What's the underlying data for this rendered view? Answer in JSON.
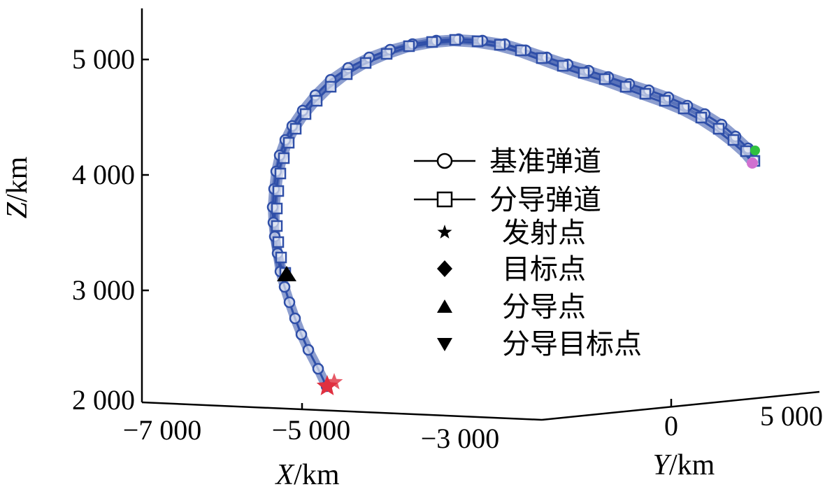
{
  "chart_data": {
    "type": "line",
    "projection": "3d",
    "axes": {
      "x": {
        "label_italic": "X",
        "label_unit": "/km",
        "ticks": [
          "−7 000",
          "−5 000",
          "−3 000"
        ]
      },
      "y": {
        "label_italic": "Y",
        "label_unit": "/km",
        "ticks": [
          "0",
          "5 000"
        ]
      },
      "z": {
        "label_italic": "Z",
        "label_unit": "/km",
        "ticks": [
          "2 000",
          "3 000",
          "4 000",
          "5 000"
        ]
      }
    },
    "legend": {
      "placement": "center-right",
      "entries": [
        {
          "label": "基准弹道",
          "marker": "circle-line"
        },
        {
          "label": "分导弹道",
          "marker": "square-line"
        },
        {
          "label": "发射点",
          "marker": "star"
        },
        {
          "label": "目标点",
          "marker": "diamond"
        },
        {
          "label": "分导点",
          "marker": "triangle-up"
        },
        {
          "label": "分导目标点",
          "marker": "triangle-down"
        }
      ]
    },
    "colors": {
      "trajectory": "#2f4fa8",
      "launch_point": "#e03040",
      "target_point": "#d070d0",
      "target_alt": "#30c040",
      "separation_point": "#000000"
    },
    "series": [
      {
        "name": "基准弹道",
        "projected_z": [
          2100,
          2550,
          3100,
          3750,
          4200,
          4550,
          4850,
          5000,
          5070,
          5100,
          5070,
          4950,
          4800,
          4600,
          4400,
          4200
        ]
      },
      {
        "name": "分导弹道",
        "projected_z": [
          3100,
          3600,
          4100,
          4500,
          4800,
          5000,
          5080,
          5080,
          5020,
          4880,
          4700,
          4480,
          4250,
          4140
        ]
      }
    ]
  }
}
